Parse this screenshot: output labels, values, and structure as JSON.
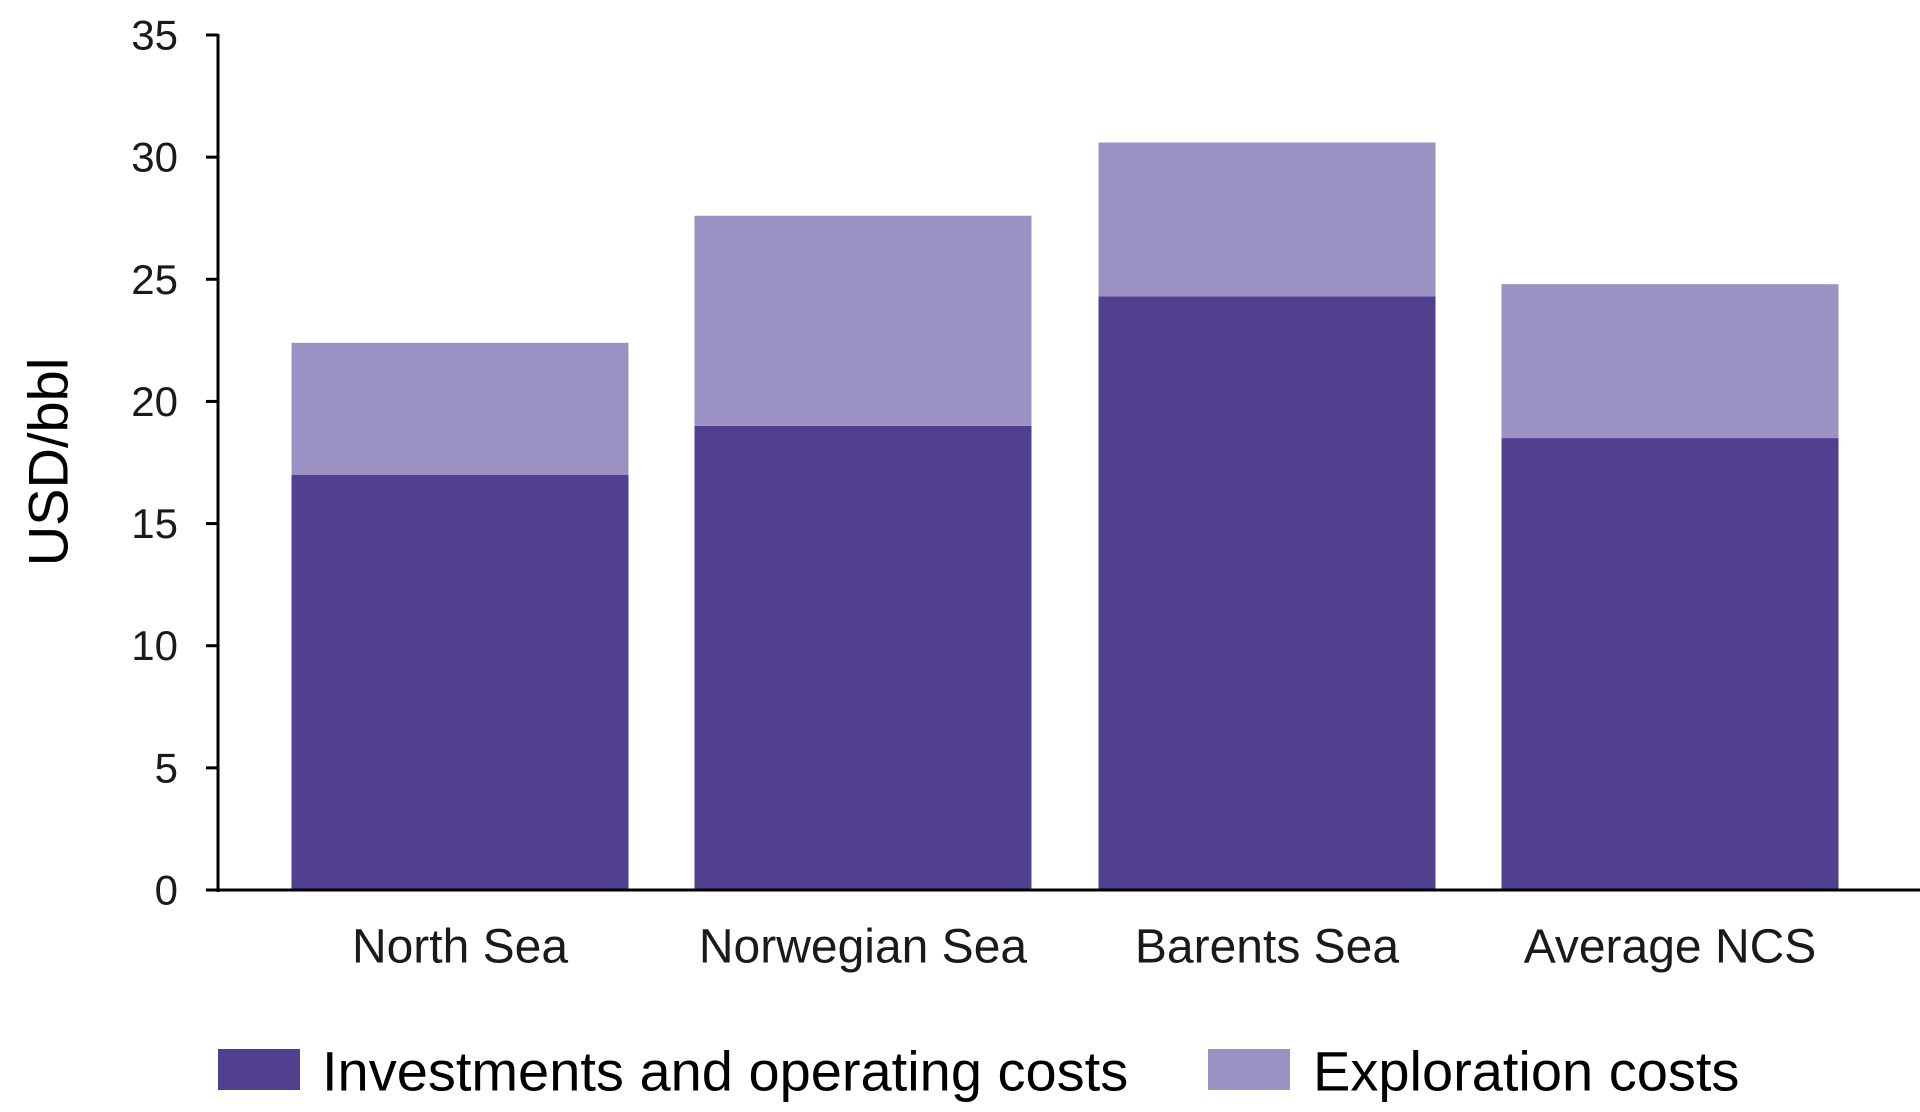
{
  "chart_data": {
    "type": "bar",
    "stacked": true,
    "title": "",
    "xlabel": "",
    "ylabel": "USD/bbl",
    "ylim": [
      0,
      35
    ],
    "yticks": [
      0,
      5,
      10,
      15,
      20,
      25,
      30,
      35
    ],
    "grid": false,
    "legend_position": "bottom",
    "categories": [
      "North Sea",
      "Norwegian Sea",
      "Barents Sea",
      "Average NCS"
    ],
    "series": [
      {
        "name": "Investments and operating costs",
        "color": "#513f8f",
        "values": [
          17.0,
          19.0,
          24.3,
          18.5
        ]
      },
      {
        "name": "Exploration costs",
        "color": "#9b91c2",
        "values": [
          5.4,
          8.6,
          6.3,
          6.3
        ]
      }
    ]
  }
}
